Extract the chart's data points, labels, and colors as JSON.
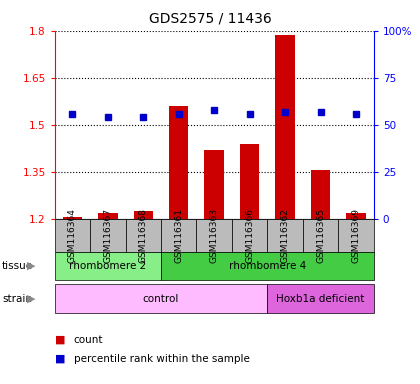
{
  "title": "GDS2575 / 11436",
  "samples": [
    "GSM116364",
    "GSM116367",
    "GSM116368",
    "GSM116361",
    "GSM116363",
    "GSM116366",
    "GSM116362",
    "GSM116365",
    "GSM116369"
  ],
  "counts": [
    1.205,
    1.22,
    1.225,
    1.56,
    1.42,
    1.44,
    1.785,
    1.355,
    1.22
  ],
  "percentile_ranks": [
    56,
    54,
    54,
    56,
    58,
    56,
    57,
    57,
    56
  ],
  "ylim_left": [
    1.2,
    1.8
  ],
  "ylim_right": [
    0,
    100
  ],
  "yticks_left": [
    1.2,
    1.35,
    1.5,
    1.65,
    1.8
  ],
  "yticks_right": [
    0,
    25,
    50,
    75,
    100
  ],
  "ytick_labels_left": [
    "1.2",
    "1.35",
    "1.5",
    "1.65",
    "1.8"
  ],
  "ytick_labels_right": [
    "0",
    "25",
    "50",
    "75",
    "100%"
  ],
  "bar_color": "#cc0000",
  "scatter_color": "#0000cc",
  "tissue_labels": [
    {
      "text": "rhombomere 2",
      "start": 0,
      "end": 2,
      "color": "#88ee88"
    },
    {
      "text": "rhombomere 4",
      "start": 3,
      "end": 8,
      "color": "#44cc44"
    }
  ],
  "strain_labels": [
    {
      "text": "control",
      "start": 0,
      "end": 5,
      "color": "#ffbbff"
    },
    {
      "text": "Hoxb1a deficient",
      "start": 6,
      "end": 8,
      "color": "#dd66dd"
    }
  ],
  "tissue_row_label": "tissue",
  "strain_row_label": "strain",
  "legend_count_label": "count",
  "legend_pct_label": "percentile rank within the sample",
  "base_value": 1.2,
  "col_bg_color": "#cccccc",
  "fig_bg_color": "#ffffff"
}
